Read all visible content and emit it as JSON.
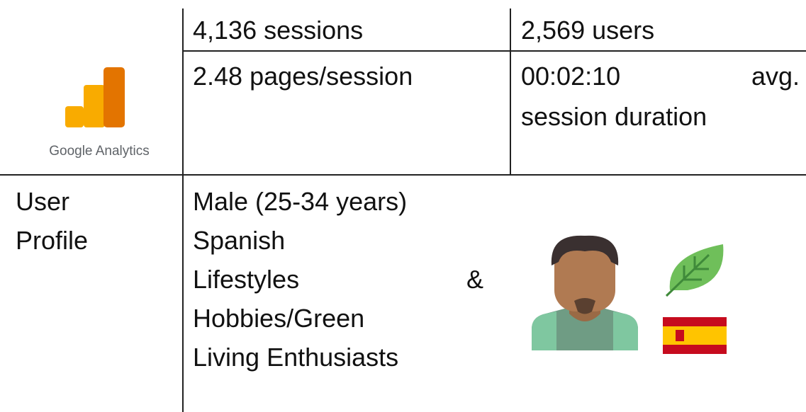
{
  "logo_label": "Google Analytics",
  "metrics": [
    [
      "4,136 sessions",
      "2,569 users"
    ],
    [
      "2.48 pages/session",
      [
        "00:02:10 avg.",
        "session duration"
      ]
    ]
  ],
  "profile": {
    "label": [
      "User",
      "Profile"
    ],
    "lines": [
      "Male (25-34 years)",
      "Spanish",
      "Lifestyles &",
      "Hobbies/Green",
      "Living Enthusiasts"
    ]
  }
}
